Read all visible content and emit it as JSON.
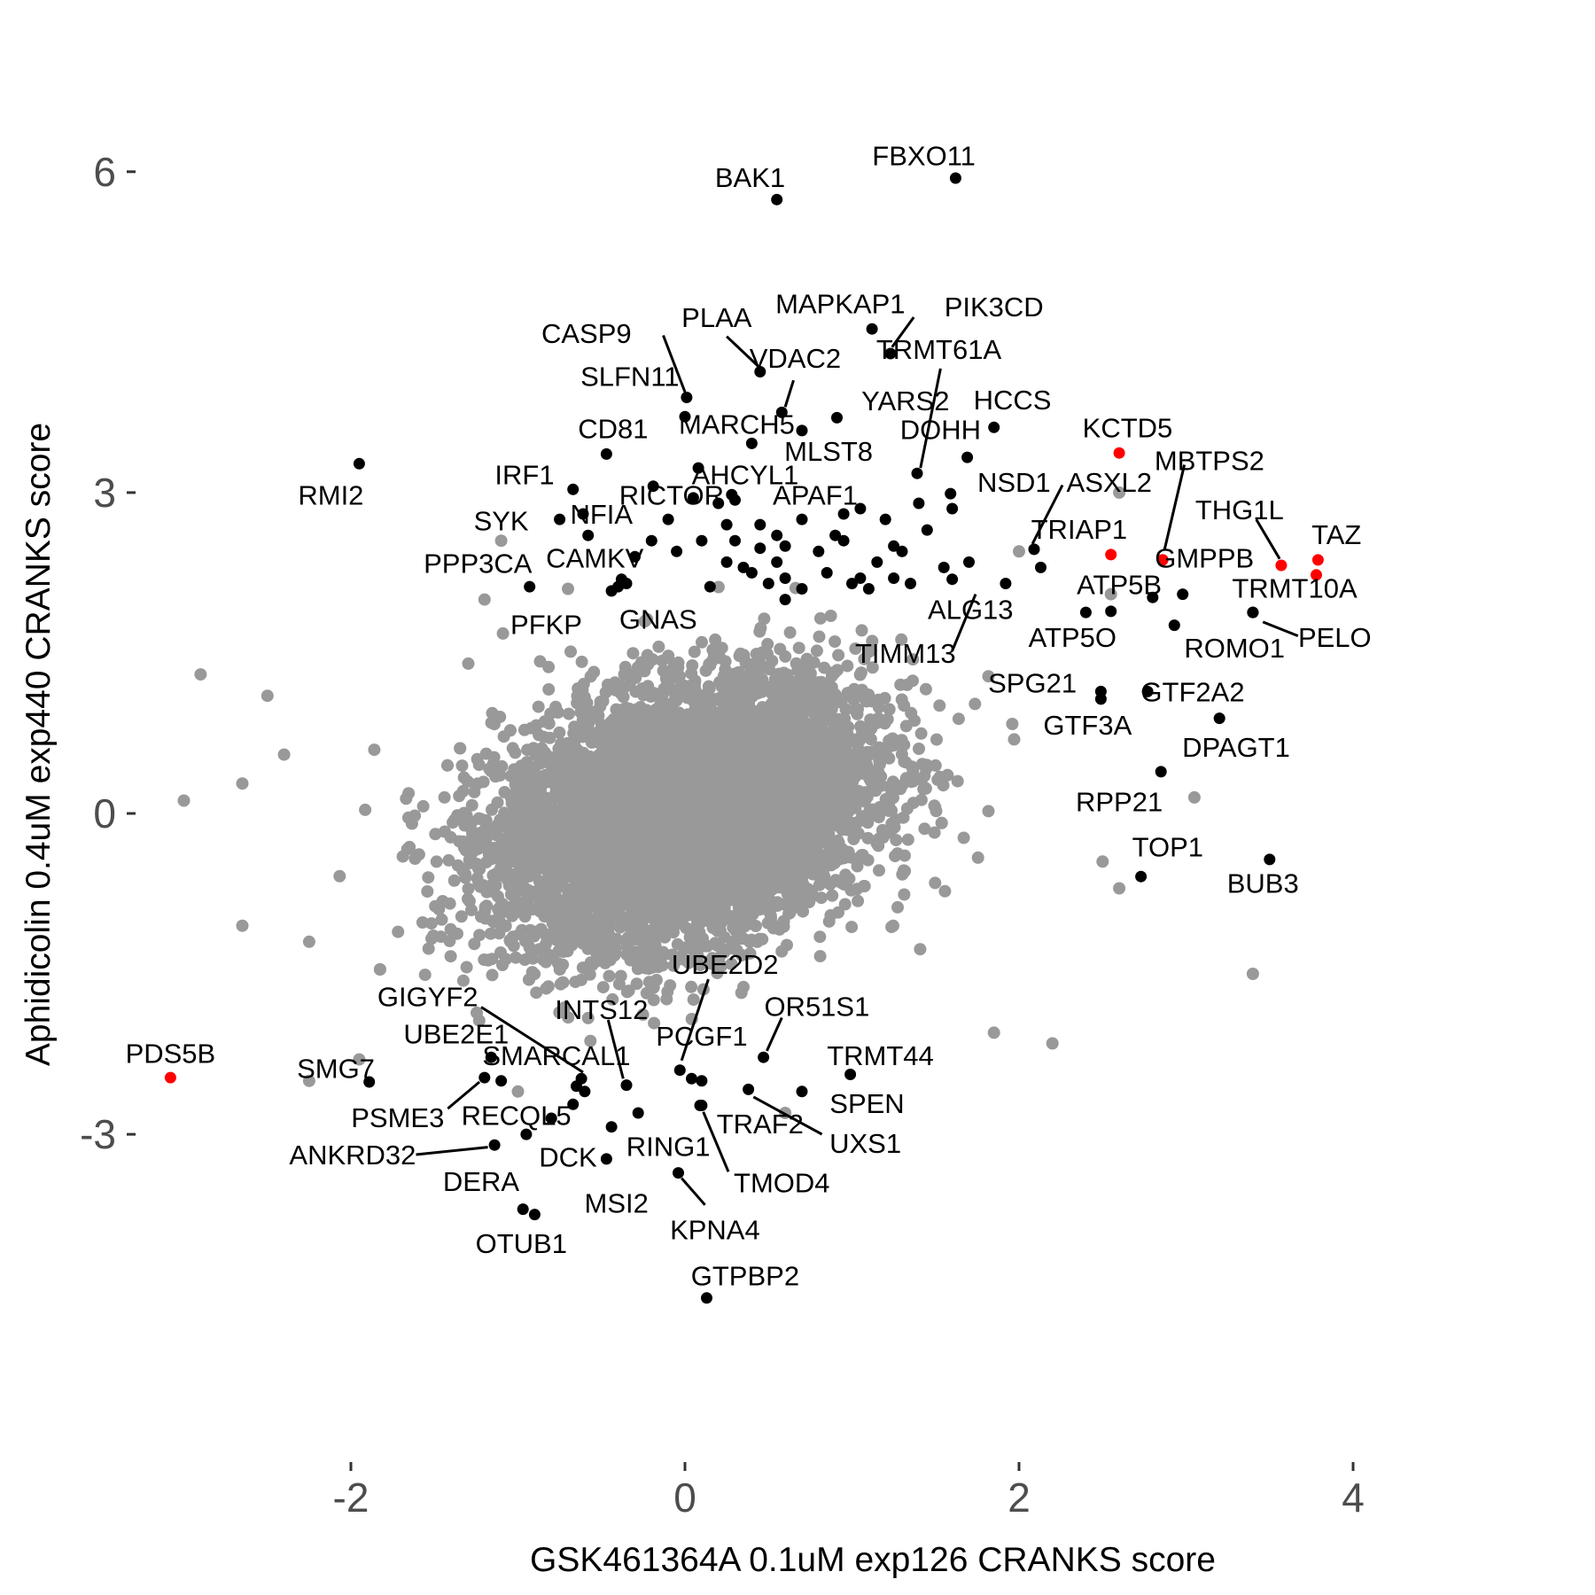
{
  "chart_data": {
    "type": "scatter",
    "title": "",
    "xlabel": "GSK461364A 0.1uM exp126 CRANKS score",
    "ylabel": "Aphidicolin 0.4uM exp440 CRANKS score",
    "xlim": [
      -3.1,
      4.0
    ],
    "ylim": [
      -4.8,
      6.2
    ],
    "x_ticks": [
      -2,
      0,
      2,
      4
    ],
    "y_ticks": [
      -3,
      0,
      3,
      6
    ],
    "x_tick_labels": [
      "-2",
      "0",
      "2",
      "4"
    ],
    "y_tick_labels": [
      "-3",
      "0",
      "3",
      "6"
    ],
    "grid": false,
    "legend": "none",
    "colors": {
      "background": "#ffffff",
      "points": "#999999",
      "hits": "#000000",
      "highlight": "#ff0000",
      "ticks": "#4d4d4d"
    },
    "background_cloud": {
      "description": "thousands of grey non-significant genes",
      "center": [
        0.0,
        0.0
      ],
      "sd": [
        0.55,
        0.6
      ],
      "correlation": 0.3,
      "n": 7000
    },
    "background_outliers": [
      [
        -2.9,
        1.3
      ],
      [
        -2.5,
        1.1
      ],
      [
        -2.4,
        0.55
      ],
      [
        -3.0,
        0.12
      ],
      [
        -2.65,
        0.28
      ],
      [
        -2.65,
        -1.05
      ],
      [
        -2.25,
        -1.2
      ],
      [
        -2.25,
        -2.5
      ],
      [
        -1.1,
        2.55
      ],
      [
        -1.2,
        2.0
      ],
      [
        2.6,
        3.0
      ],
      [
        2.0,
        2.45
      ],
      [
        2.55,
        2.05
      ],
      [
        3.05,
        0.15
      ],
      [
        3.4,
        -1.5
      ],
      [
        2.2,
        -2.15
      ],
      [
        1.85,
        -2.05
      ],
      [
        2.6,
        -0.7
      ],
      [
        2.5,
        -0.45
      ],
      [
        0.6,
        -2.8
      ],
      [
        -1.0,
        -2.6
      ],
      [
        -1.95,
        -2.3
      ],
      [
        -0.7,
        2.1
      ]
    ],
    "points": [
      {
        "label": "FBXO11",
        "x": 1.62,
        "y": 5.94,
        "color": "#000000"
      },
      {
        "label": "BAK1",
        "x": 0.55,
        "y": 5.74,
        "color": "#000000"
      },
      {
        "label": "MAPKAP1",
        "x": 1.12,
        "y": 4.53,
        "color": "#000000"
      },
      {
        "label": "PIK3CD",
        "x": 1.23,
        "y": 4.3,
        "color": "#000000"
      },
      {
        "label": "PLAA",
        "x": 0.45,
        "y": 4.13,
        "color": "#000000"
      },
      {
        "label": "CASP9",
        "x": 0.01,
        "y": 3.89,
        "color": "#000000"
      },
      {
        "label": "VDAC2",
        "x": 0.58,
        "y": 3.75,
        "color": "#000000"
      },
      {
        "label": "SLFN11",
        "x": 0.0,
        "y": 3.71,
        "color": "#000000"
      },
      {
        "label": "YARS2",
        "x": 0.91,
        "y": 3.7,
        "color": "#000000"
      },
      {
        "label": "MARCH5",
        "x": 0.7,
        "y": 3.58,
        "color": "#000000"
      },
      {
        "label": "HCCS",
        "x": 1.85,
        "y": 3.61,
        "color": "#000000"
      },
      {
        "label": "MLST8",
        "x": 0.4,
        "y": 3.46,
        "color": "#000000"
      },
      {
        "label": "CD81",
        "x": -0.47,
        "y": 3.36,
        "color": "#000000"
      },
      {
        "label": "DOHH",
        "x": 1.69,
        "y": 3.33,
        "color": "#000000"
      },
      {
        "label": "RMI2",
        "x": -1.95,
        "y": 3.27,
        "color": "#000000"
      },
      {
        "label": "AHCYL1",
        "x": 0.08,
        "y": 3.23,
        "color": "#000000"
      },
      {
        "label": "TRMT61A",
        "x": 1.39,
        "y": 3.18,
        "color": "#000000"
      },
      {
        "label": "NSD1",
        "x": 1.59,
        "y": 2.99,
        "color": "#000000"
      },
      {
        "label": "IRF1",
        "x": -0.67,
        "y": 3.03,
        "color": "#000000"
      },
      {
        "label": "RICTOR",
        "x": -0.19,
        "y": 3.06,
        "color": "#000000"
      },
      {
        "label": "APAF1",
        "x": 0.3,
        "y": 2.93,
        "color": "#000000"
      },
      {
        "label": "NFIA",
        "x": -0.61,
        "y": 2.8,
        "color": "#000000"
      },
      {
        "label": "SYK",
        "x": -0.75,
        "y": 2.75,
        "color": "#000000"
      },
      {
        "label": "CAMKV",
        "x": -0.58,
        "y": 2.6,
        "color": "#000000"
      },
      {
        "label": "ASXL2",
        "x": 2.09,
        "y": 2.47,
        "color": "#000000"
      },
      {
        "label": "TRIAP1",
        "x": 2.55,
        "y": 2.42,
        "color": "#ff0000"
      },
      {
        "label": "KCTD5",
        "x": 2.6,
        "y": 3.37,
        "color": "#ff0000"
      },
      {
        "label": "MBTPS2",
        "x": 2.86,
        "y": 2.37,
        "color": "#ff0000"
      },
      {
        "label": "GMPPB",
        "x": 2.86,
        "y": 2.37,
        "color": "#ff0000"
      },
      {
        "label": "THG1L",
        "x": 3.57,
        "y": 2.32,
        "color": "#ff0000"
      },
      {
        "label": "TAZ",
        "x": 3.78,
        "y": 2.23,
        "color": "#ff0000"
      },
      {
        "label": "TAZ-2",
        "x": 3.79,
        "y": 2.37,
        "color": "#ff0000"
      },
      {
        "label": "PPP3CA",
        "x": -0.93,
        "y": 2.12,
        "color": "#000000"
      },
      {
        "label": "ATP5B",
        "x": 2.55,
        "y": 1.89,
        "color": "#000000"
      },
      {
        "label": "ALG13",
        "x": 1.92,
        "y": 2.15,
        "color": "#000000"
      },
      {
        "label": "TRMT10A",
        "x": 3.4,
        "y": 1.88,
        "color": "#000000"
      },
      {
        "label": "PELO",
        "x": 3.4,
        "y": 1.88,
        "color": "#000000"
      },
      {
        "label": "ROMO1",
        "x": 2.93,
        "y": 1.76,
        "color": "#000000"
      },
      {
        "label": "ATP5O-unlabeled",
        "x": 2.8,
        "y": 2.02,
        "color": "#000000"
      },
      {
        "label": "PFKP",
        "x": -0.44,
        "y": 2.08,
        "color": "#000000"
      },
      {
        "label": "GNAS",
        "x": -0.38,
        "y": 2.19,
        "color": "#000000"
      },
      {
        "label": "TIMM13",
        "x": 1.6,
        "y": 2.19,
        "color": "#000000"
      },
      {
        "label": "SPG21",
        "x": 2.49,
        "y": 1.14,
        "color": "#000000"
      },
      {
        "label": "GTF3A",
        "x": 2.49,
        "y": 1.07,
        "color": "#000000"
      },
      {
        "label": "GTF2A2",
        "x": 2.77,
        "y": 1.14,
        "color": "#000000"
      },
      {
        "label": "DPAGT1",
        "x": 3.2,
        "y": 0.89,
        "color": "#000000"
      },
      {
        "label": "RPP21",
        "x": 2.85,
        "y": 0.39,
        "color": "#000000"
      },
      {
        "label": "TOP1",
        "x": 2.73,
        "y": -0.59,
        "color": "#000000"
      },
      {
        "label": "BUB3",
        "x": 3.5,
        "y": -0.43,
        "color": "#000000"
      },
      {
        "label": "UBE2D2",
        "x": -0.03,
        "y": -2.4,
        "color": "#000000"
      },
      {
        "label": "GIGYF2",
        "x": -0.62,
        "y": -2.48,
        "color": "#000000"
      },
      {
        "label": "INTS12",
        "x": -0.35,
        "y": -2.54,
        "color": "#000000"
      },
      {
        "label": "OR51S1",
        "x": 0.47,
        "y": -2.28,
        "color": "#000000"
      },
      {
        "label": "PCGF1",
        "x": 0.04,
        "y": -2.48,
        "color": "#000000"
      },
      {
        "label": "UBE2E1",
        "x": -1.16,
        "y": -2.28,
        "color": "#000000"
      },
      {
        "label": "SMARCAL1",
        "x": -0.65,
        "y": -2.55,
        "color": "#000000"
      },
      {
        "label": "TRMT44",
        "x": 0.99,
        "y": -2.44,
        "color": "#000000"
      },
      {
        "label": "SMG7",
        "x": -1.89,
        "y": -2.51,
        "color": "#000000"
      },
      {
        "label": "PSME3",
        "x": -1.2,
        "y": -2.47,
        "color": "#000000"
      },
      {
        "label": "RECQL5",
        "x": -0.67,
        "y": -2.72,
        "color": "#000000"
      },
      {
        "label": "SPEN",
        "x": 0.7,
        "y": -2.6,
        "color": "#000000"
      },
      {
        "label": "UXS1",
        "x": 0.38,
        "y": -2.58,
        "color": "#000000"
      },
      {
        "label": "TRAF2",
        "x": 0.09,
        "y": -2.73,
        "color": "#000000"
      },
      {
        "label": "TMOD4",
        "x": 0.1,
        "y": -2.73,
        "color": "#000000"
      },
      {
        "label": "RING1",
        "x": -0.44,
        "y": -2.93,
        "color": "#000000"
      },
      {
        "label": "DCK",
        "x": -0.95,
        "y": -3.0,
        "color": "#000000"
      },
      {
        "label": "ANKRD32",
        "x": -1.14,
        "y": -3.1,
        "color": "#000000"
      },
      {
        "label": "MSI2",
        "x": -0.47,
        "y": -3.23,
        "color": "#000000"
      },
      {
        "label": "KPNA4",
        "x": -0.04,
        "y": -3.36,
        "color": "#000000"
      },
      {
        "label": "DERA",
        "x": -0.97,
        "y": -3.7,
        "color": "#000000"
      },
      {
        "label": "OTUB1",
        "x": -0.9,
        "y": -3.75,
        "color": "#000000"
      },
      {
        "label": "GTPBP2",
        "x": 0.13,
        "y": -4.53,
        "color": "#000000"
      },
      {
        "label": "PDS5B",
        "x": -3.08,
        "y": -2.47,
        "color": "#ff0000"
      }
    ],
    "extra_hits": [
      [
        0.2,
        2.9
      ],
      [
        0.3,
        2.55
      ],
      [
        0.45,
        2.7
      ],
      [
        0.55,
        2.35
      ],
      [
        0.7,
        2.75
      ],
      [
        0.8,
        2.45
      ],
      [
        0.95,
        2.55
      ],
      [
        1.05,
        2.85
      ],
      [
        1.2,
        2.75
      ],
      [
        1.3,
        2.45
      ],
      [
        1.45,
        2.65
      ],
      [
        1.55,
        2.3
      ],
      [
        1.7,
        2.35
      ],
      [
        0.1,
        2.55
      ],
      [
        -0.05,
        2.45
      ],
      [
        0.25,
        2.35
      ],
      [
        0.4,
        2.25
      ],
      [
        0.6,
        2.2
      ],
      [
        0.85,
        2.25
      ],
      [
        1.15,
        2.35
      ],
      [
        1.25,
        2.2
      ],
      [
        1.35,
        2.15
      ],
      [
        -0.2,
        2.55
      ],
      [
        -0.1,
        2.75
      ],
      [
        0.6,
        2.5
      ],
      [
        0.9,
        2.6
      ],
      [
        0.15,
        2.12
      ],
      [
        0.45,
        2.48
      ],
      [
        -0.3,
        2.4
      ],
      [
        0.25,
        2.7
      ],
      [
        0.55,
        2.6
      ],
      [
        0.35,
        2.3
      ],
      [
        0.5,
        2.15
      ],
      [
        0.7,
        2.1
      ],
      [
        1.0,
        2.15
      ],
      [
        1.1,
        2.1
      ],
      [
        1.25,
        2.5
      ],
      [
        1.4,
        2.9
      ],
      [
        1.6,
        2.85
      ],
      [
        -0.35,
        2.15
      ],
      [
        -0.4,
        2.12
      ],
      [
        0.05,
        2.95
      ],
      [
        0.28,
        2.98
      ],
      [
        0.95,
        2.8
      ],
      [
        1.05,
        2.2
      ],
      [
        -0.8,
        -2.85
      ],
      [
        -0.6,
        -2.6
      ],
      [
        -0.28,
        -2.8
      ],
      [
        0.1,
        -2.5
      ],
      [
        -1.1,
        -2.5
      ],
      [
        2.98,
        2.05
      ],
      [
        2.4,
        1.88
      ],
      [
        2.13,
        2.3
      ],
      [
        0.6,
        2.0
      ]
    ],
    "labels": [
      {
        "text": "FBXO11",
        "lx": 1.43,
        "ly": 6.15
      },
      {
        "text": "BAK1",
        "lx": 0.39,
        "ly": 5.95
      },
      {
        "text": "MAPKAP1",
        "lx": 0.93,
        "ly": 4.77
      },
      {
        "text": "PIK3CD",
        "lx": 1.85,
        "ly": 4.74,
        "line": [
          1.37,
          4.64,
          1.24,
          4.36
        ]
      },
      {
        "text": "PLAA",
        "lx": 0.19,
        "ly": 4.64,
        "line": [
          0.25,
          4.46,
          0.44,
          4.18
        ]
      },
      {
        "text": "CASP9",
        "lx": -0.59,
        "ly": 4.49,
        "line": [
          -0.13,
          4.47,
          0.0,
          3.94
        ]
      },
      {
        "text": "VDAC2",
        "lx": 0.66,
        "ly": 4.26,
        "line": [
          0.65,
          4.05,
          0.6,
          3.8
        ]
      },
      {
        "text": "TRMT61A",
        "lx": 1.52,
        "ly": 4.34,
        "line": [
          1.53,
          4.16,
          1.41,
          3.23
        ]
      },
      {
        "text": "SLFN11",
        "lx": -0.33,
        "ly": 4.09
      },
      {
        "text": "YARS2",
        "lx": 1.32,
        "ly": 3.86
      },
      {
        "text": "HCCS",
        "lx": 1.96,
        "ly": 3.87
      },
      {
        "text": "MARCH5",
        "lx": 0.31,
        "ly": 3.64
      },
      {
        "text": "CD81",
        "lx": -0.43,
        "ly": 3.6
      },
      {
        "text": "DOHH",
        "lx": 1.53,
        "ly": 3.59
      },
      {
        "text": "KCTD5",
        "lx": 2.65,
        "ly": 3.61
      },
      {
        "text": "MLST8",
        "lx": 0.86,
        "ly": 3.39
      },
      {
        "text": "MBTPS2",
        "lx": 3.14,
        "ly": 3.3,
        "line": [
          2.99,
          3.26,
          2.87,
          2.46
        ]
      },
      {
        "text": "RMI2",
        "lx": -2.12,
        "ly": 2.98
      },
      {
        "text": "IRF1",
        "lx": -0.96,
        "ly": 3.17
      },
      {
        "text": "AHCYL1",
        "lx": 0.36,
        "ly": 3.17
      },
      {
        "text": "NSD1",
        "lx": 1.97,
        "ly": 3.1
      },
      {
        "text": "ASXL2",
        "lx": 2.54,
        "ly": 3.1,
        "line": [
          2.26,
          3.07,
          2.08,
          2.52
        ]
      },
      {
        "text": "RICTOR",
        "lx": -0.08,
        "ly": 2.98
      },
      {
        "text": "APAF1",
        "lx": 0.78,
        "ly": 2.98
      },
      {
        "text": "THG1L",
        "lx": 3.32,
        "ly": 2.84,
        "line": [
          3.42,
          2.75,
          3.56,
          2.38
        ]
      },
      {
        "text": "NFIA",
        "lx": -0.5,
        "ly": 2.8
      },
      {
        "text": "SYK",
        "lx": -1.1,
        "ly": 2.74
      },
      {
        "text": "TRIAP1",
        "lx": 2.36,
        "ly": 2.66
      },
      {
        "text": "TAZ",
        "lx": 3.9,
        "ly": 2.61
      },
      {
        "text": "GMPPB",
        "lx": 3.11,
        "ly": 2.39
      },
      {
        "text": "CAMKV",
        "lx": -0.54,
        "ly": 2.39
      },
      {
        "text": "PPP3CA",
        "lx": -1.24,
        "ly": 2.34
      },
      {
        "text": "ATP5B",
        "lx": 2.6,
        "ly": 2.14
      },
      {
        "text": "TRMT10A",
        "lx": 3.65,
        "ly": 2.11
      },
      {
        "text": "ALG13",
        "lx": 1.71,
        "ly": 1.91,
        "line": [
          1.74,
          2.05,
          1.6,
          1.52
        ]
      },
      {
        "text": "PFKP",
        "lx": -0.83,
        "ly": 1.77
      },
      {
        "text": "GNAS",
        "lx": -0.16,
        "ly": 1.82
      },
      {
        "text": "ATP5O",
        "lx": 2.32,
        "ly": 1.65
      },
      {
        "text": "PELO",
        "lx": 3.89,
        "ly": 1.65,
        "line": [
          3.67,
          1.66,
          3.46,
          1.79
        ]
      },
      {
        "text": "ROMO1",
        "lx": 3.29,
        "ly": 1.55
      },
      {
        "text": "TIMM13",
        "lx": 1.32,
        "ly": 1.5
      },
      {
        "text": "SPG21",
        "lx": 2.08,
        "ly": 1.22
      },
      {
        "text": "GTF2A2",
        "lx": 3.04,
        "ly": 1.14
      },
      {
        "text": "GTF3A",
        "lx": 2.41,
        "ly": 0.83
      },
      {
        "text": "DPAGT1",
        "lx": 3.3,
        "ly": 0.62
      },
      {
        "text": "RPP21",
        "lx": 2.6,
        "ly": 0.11
      },
      {
        "text": "TOP1",
        "lx": 2.89,
        "ly": -0.31
      },
      {
        "text": "BUB3",
        "lx": 3.46,
        "ly": -0.65
      },
      {
        "text": "UBE2D2",
        "lx": 0.24,
        "ly": -1.41,
        "line": [
          0.14,
          -1.55,
          -0.02,
          -2.31
        ]
      },
      {
        "text": "GIGYF2",
        "lx": -1.54,
        "ly": -1.71,
        "line": [
          -1.22,
          -1.81,
          -0.61,
          -2.42
        ]
      },
      {
        "text": "INTS12",
        "lx": -0.5,
        "ly": -1.83,
        "line": [
          -0.46,
          -1.93,
          -0.37,
          -2.48
        ]
      },
      {
        "text": "OR51S1",
        "lx": 0.79,
        "ly": -1.8,
        "line": [
          0.58,
          -1.91,
          0.49,
          -2.22
        ]
      },
      {
        "text": "PCGF1",
        "lx": 0.1,
        "ly": -2.08
      },
      {
        "text": "UBE2E1",
        "lx": -1.37,
        "ly": -2.06
      },
      {
        "text": "SMARCAL1",
        "lx": -0.77,
        "ly": -2.26
      },
      {
        "text": "TRMT44",
        "lx": 1.17,
        "ly": -2.26
      },
      {
        "text": "SMG7",
        "lx": -2.09,
        "ly": -2.38
      },
      {
        "text": "PSME3",
        "lx": -1.72,
        "ly": -2.84,
        "line": [
          -1.42,
          -2.76,
          -1.23,
          -2.51
        ]
      },
      {
        "text": "RECQL5",
        "lx": -1.01,
        "ly": -2.82
      },
      {
        "text": "SPEN",
        "lx": 1.09,
        "ly": -2.71
      },
      {
        "text": "UXS1",
        "lx": 1.08,
        "ly": -3.08,
        "line": [
          0.82,
          -3.0,
          0.41,
          -2.65
        ]
      },
      {
        "text": "TRAF2",
        "lx": 0.45,
        "ly": -2.9
      },
      {
        "text": "TMOD4",
        "lx": 0.58,
        "ly": -3.45,
        "line": [
          0.26,
          -3.35,
          0.11,
          -2.79
        ]
      },
      {
        "text": "RING1",
        "lx": -0.1,
        "ly": -3.11
      },
      {
        "text": "DCK",
        "lx": -0.7,
        "ly": -3.21
      },
      {
        "text": "ANKRD32",
        "lx": -1.99,
        "ly": -3.19,
        "line": [
          -1.61,
          -3.19,
          -1.18,
          -3.12
        ]
      },
      {
        "text": "DERA",
        "lx": -1.22,
        "ly": -3.44
      },
      {
        "text": "MSI2",
        "lx": -0.41,
        "ly": -3.64
      },
      {
        "text": "KPNA4",
        "lx": 0.18,
        "ly": -3.89,
        "line": [
          0.12,
          -3.66,
          -0.02,
          -3.41
        ]
      },
      {
        "text": "OTUB1",
        "lx": -0.98,
        "ly": -4.02
      },
      {
        "text": "GTPBP2",
        "lx": 0.36,
        "ly": -4.32
      },
      {
        "text": "PDS5B",
        "lx": -3.08,
        "ly": -2.24
      }
    ]
  }
}
